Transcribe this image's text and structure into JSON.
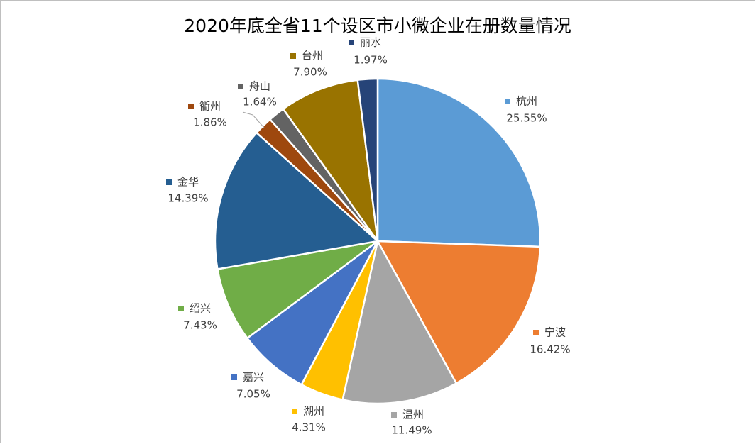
{
  "chart_data": {
    "type": "pie",
    "title": "2020年底全省11个设区市小微企业在册数量情况",
    "categories": [
      "杭州",
      "宁波",
      "温州",
      "湖州",
      "嘉兴",
      "绍兴",
      "金华",
      "衢州",
      "舟山",
      "台州",
      "丽水"
    ],
    "values": [
      25.55,
      16.42,
      11.49,
      4.31,
      7.05,
      7.43,
      14.39,
      1.86,
      1.64,
      7.9,
      1.97
    ],
    "value_labels": [
      "25.55%",
      "16.42%",
      "11.49%",
      "4.31%",
      "7.05%",
      "7.43%",
      "14.39%",
      "1.86%",
      "1.64%",
      "7.90%",
      "1.97%"
    ],
    "colors": [
      "#5b9bd5",
      "#ed7d31",
      "#a5a5a5",
      "#ffc000",
      "#4472c4",
      "#70ad47",
      "#255e91",
      "#9e480e",
      "#636363",
      "#997300",
      "#264478"
    ]
  }
}
